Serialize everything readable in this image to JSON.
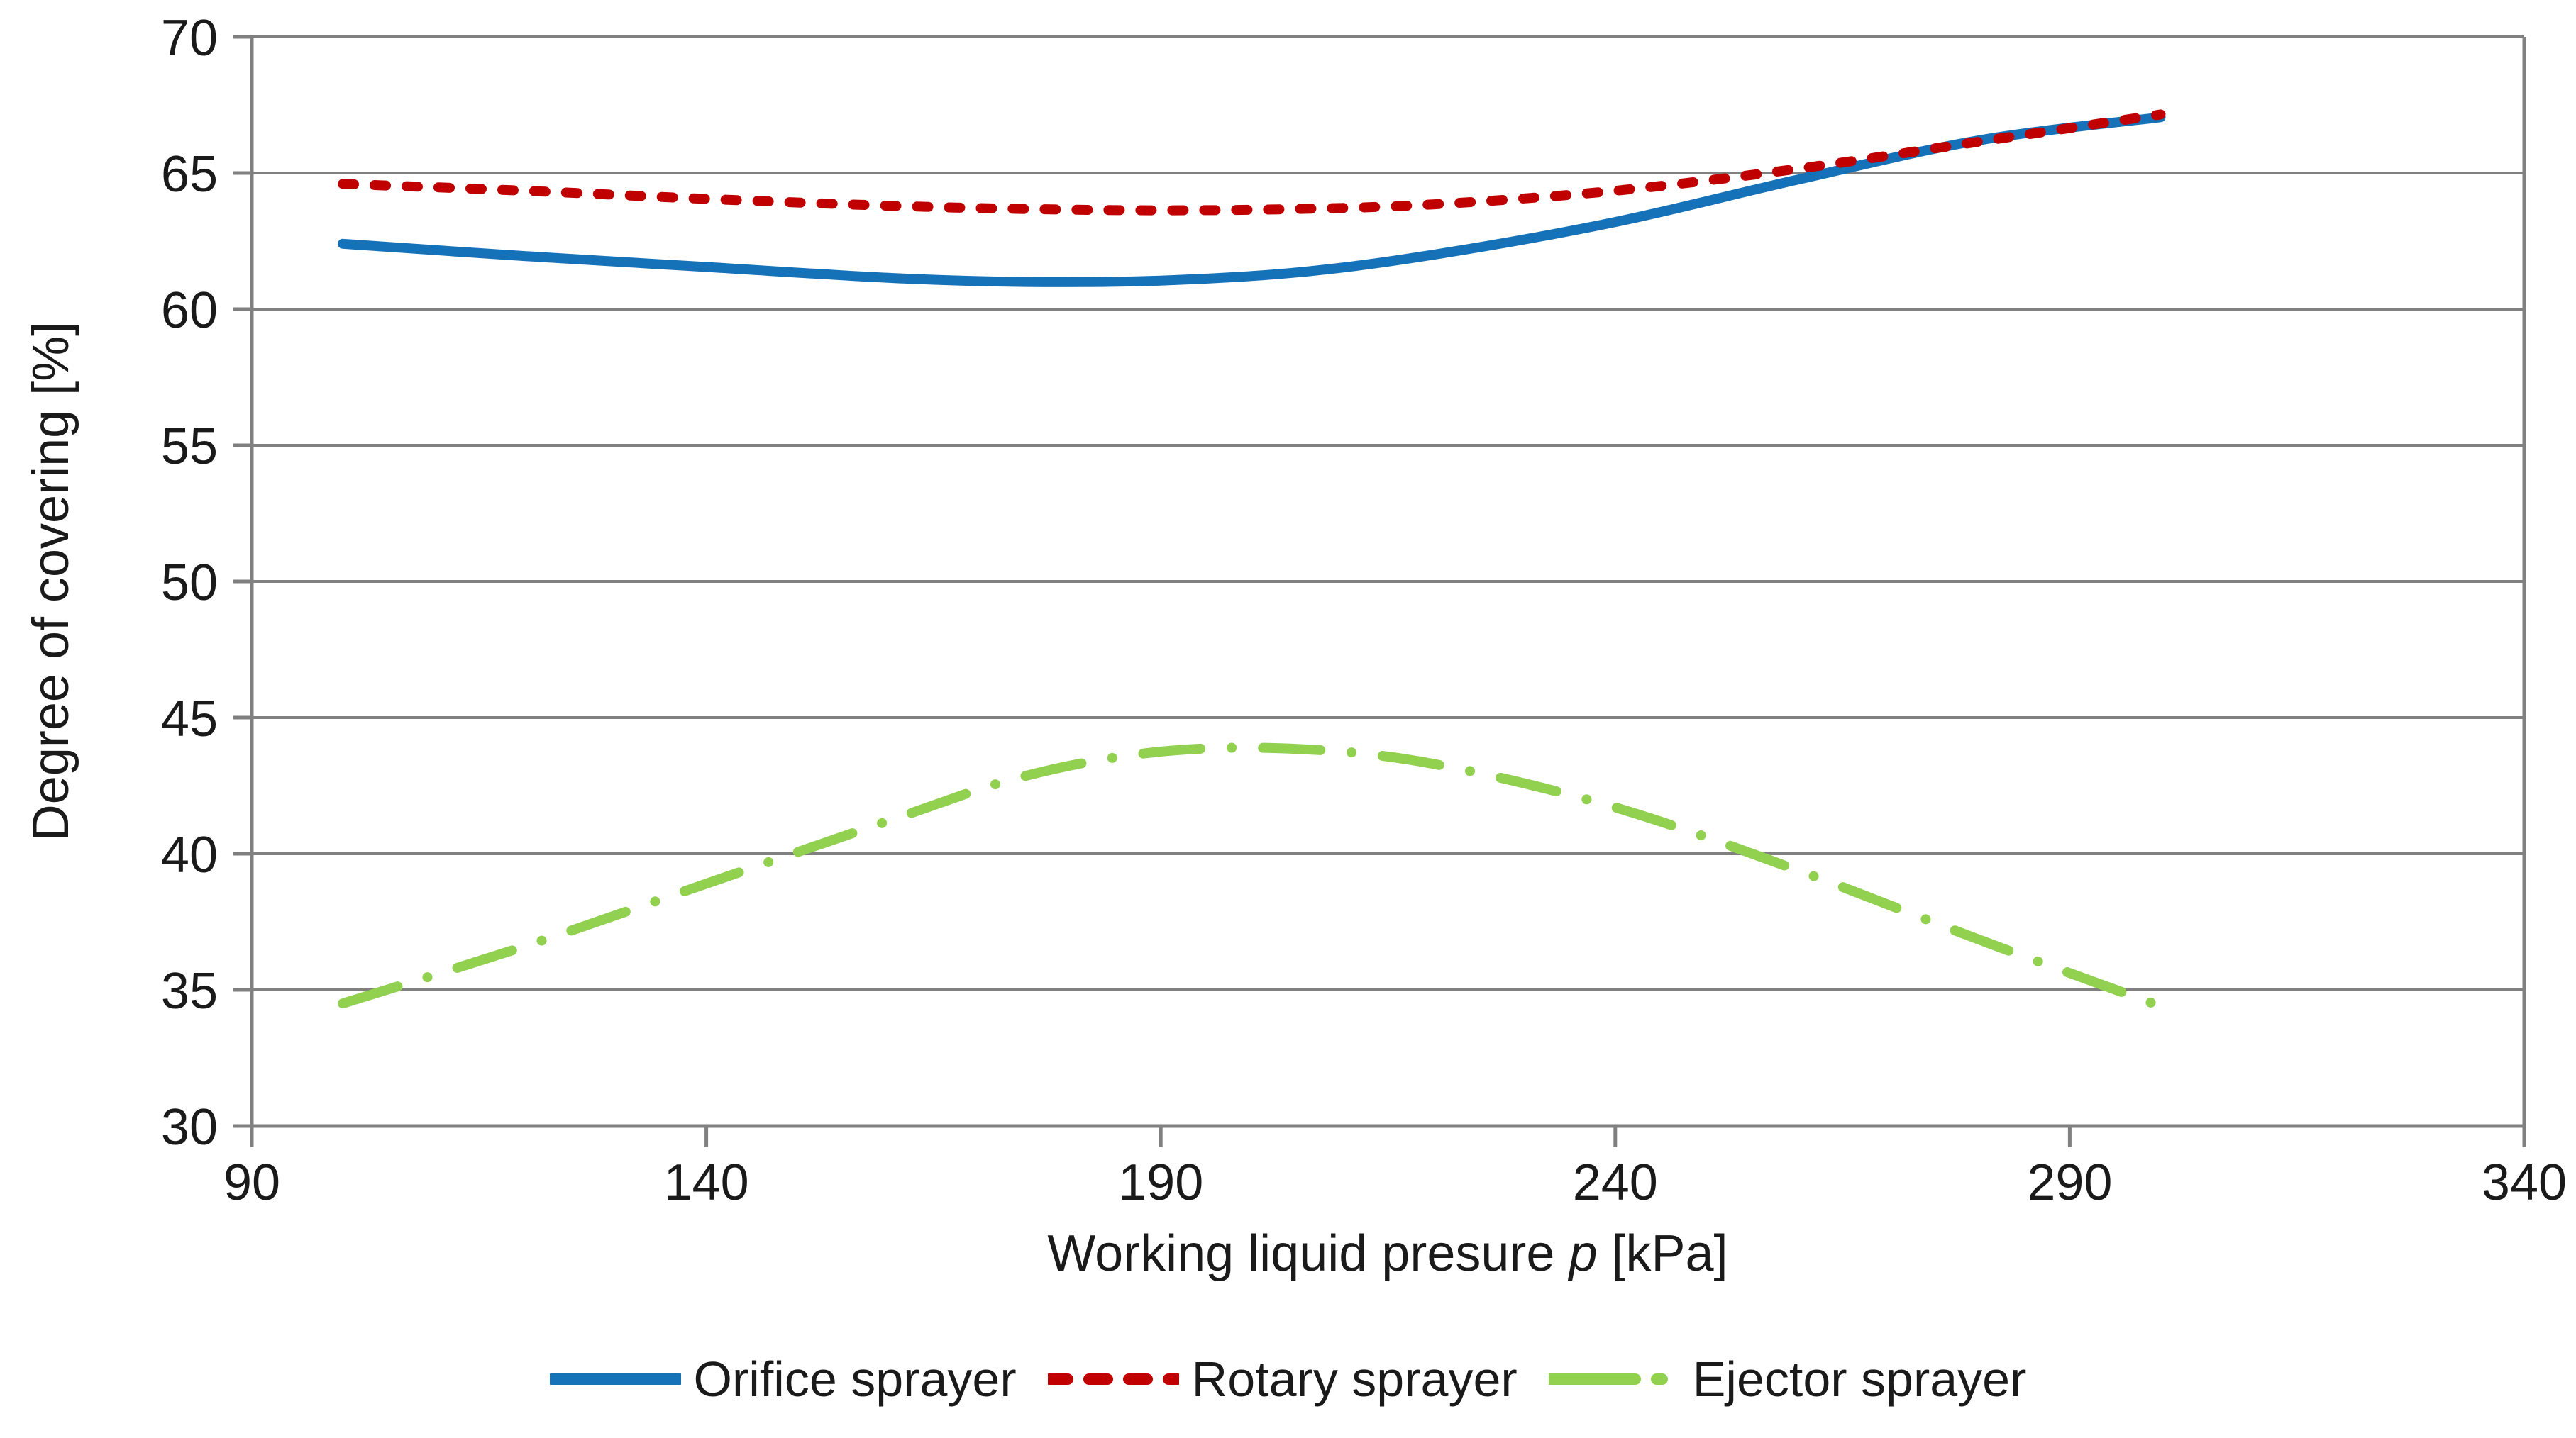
{
  "chart_data": {
    "type": "line",
    "title": "",
    "xlabel_pre": "Working liquid presure ",
    "xlabel_var": "p",
    "xlabel_post": " [kPa]",
    "ylabel": "Degree of covering [%]",
    "xlim": [
      90,
      340
    ],
    "ylim": [
      30,
      70
    ],
    "x_tick_values": [
      90,
      140,
      190,
      240,
      290,
      340
    ],
    "y_tick_values": [
      70,
      65,
      60,
      55,
      50,
      45,
      40,
      35,
      30
    ],
    "x_tick_labels": [
      "90",
      "140",
      "190",
      "240",
      "290",
      "340"
    ],
    "y_tick_labels": [
      "70",
      "65",
      "60",
      "55",
      "50",
      "45",
      "40",
      "35",
      "30"
    ],
    "grid": "horizontal",
    "legend_position": "bottom center",
    "axis_color": "#808080",
    "text_color": "#1a1a1a",
    "series": [
      {
        "name": "Orifice sprayer",
        "color": "#1572b8",
        "line_style": "solid",
        "x": [
          100,
          120,
          140,
          160,
          175,
          190,
          205,
          220,
          240,
          260,
          280,
          300
        ],
        "y": [
          62.4,
          61.95,
          61.55,
          61.15,
          61.0,
          61.05,
          61.35,
          62.0,
          63.2,
          64.75,
          66.2,
          67.05
        ]
      },
      {
        "name": "Rotary sprayer",
        "color": "#c00000",
        "line_style": "dashed",
        "x": [
          100,
          120,
          140,
          160,
          175,
          190,
          205,
          220,
          240,
          260,
          280,
          300
        ],
        "y": [
          64.6,
          64.35,
          64.05,
          63.8,
          63.68,
          63.63,
          63.68,
          63.85,
          64.35,
          65.15,
          66.15,
          67.15
        ]
      },
      {
        "name": "Ejector sprayer",
        "color": "#92d050",
        "line_style": "dash-dot",
        "x": [
          100,
          120,
          140,
          160,
          175,
          190,
          205,
          220,
          240,
          260,
          280,
          300
        ],
        "y": [
          34.5,
          36.6,
          38.9,
          41.2,
          42.85,
          43.75,
          43.85,
          43.3,
          41.7,
          39.4,
          36.85,
          34.4
        ]
      }
    ]
  }
}
